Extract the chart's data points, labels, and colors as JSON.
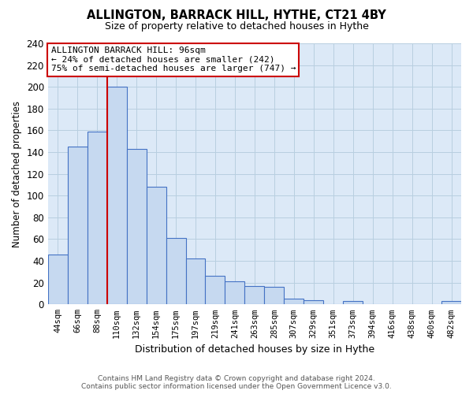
{
  "title": "ALLINGTON, BARRACK HILL, HYTHE, CT21 4BY",
  "subtitle": "Size of property relative to detached houses in Hythe",
  "xlabel": "Distribution of detached houses by size in Hythe",
  "ylabel": "Number of detached properties",
  "bar_labels": [
    "44sqm",
    "66sqm",
    "88sqm",
    "110sqm",
    "132sqm",
    "154sqm",
    "175sqm",
    "197sqm",
    "219sqm",
    "241sqm",
    "263sqm",
    "285sqm",
    "307sqm",
    "329sqm",
    "351sqm",
    "373sqm",
    "394sqm",
    "416sqm",
    "438sqm",
    "460sqm",
    "482sqm"
  ],
  "bar_values": [
    46,
    145,
    159,
    200,
    143,
    108,
    61,
    42,
    26,
    21,
    17,
    16,
    5,
    4,
    0,
    3,
    0,
    0,
    0,
    0,
    3
  ],
  "bar_color": "#c6d9f0",
  "bar_edge_color": "#4472c4",
  "property_line_idx": 2,
  "property_line_color": "#cc0000",
  "annotation_line1": "ALLINGTON BARRACK HILL: 96sqm",
  "annotation_line2": "← 24% of detached houses are smaller (242)",
  "annotation_line3": "75% of semi-detached houses are larger (747) →",
  "annotation_box_color": "#ffffff",
  "annotation_box_edge_color": "#cc0000",
  "ylim": [
    0,
    240
  ],
  "yticks": [
    0,
    20,
    40,
    60,
    80,
    100,
    120,
    140,
    160,
    180,
    200,
    220,
    240
  ],
  "plot_bg_color": "#dce9f7",
  "footer_line1": "Contains HM Land Registry data © Crown copyright and database right 2024.",
  "footer_line2": "Contains public sector information licensed under the Open Government Licence v3.0.",
  "background_color": "#ffffff",
  "grid_color": "#b8cfe0"
}
